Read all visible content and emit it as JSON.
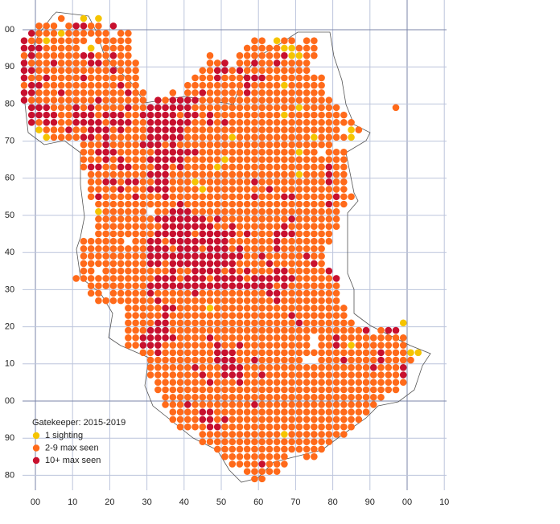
{
  "map": {
    "x_labels": [
      "00",
      "10",
      "20",
      "30",
      "40",
      "50",
      "60",
      "70",
      "80",
      "90",
      "00",
      "10"
    ],
    "y_labels": [
      "00",
      "90",
      "80",
      "70",
      "60",
      "50",
      "40",
      "30",
      "20",
      "10",
      "00",
      "90",
      "80"
    ],
    "legend": {
      "title": "Gatekeeper:  2015-2019",
      "items": [
        {
          "symbol": "a",
          "label": "1 sighting",
          "color": "#f5c400"
        },
        {
          "symbol": "b",
          "label": "2-9 max seen",
          "color": "#ff6a1a"
        },
        {
          "symbol": "c",
          "label": "10+ max seen",
          "color": "#c8102e"
        }
      ]
    },
    "rows": [
      ".....b..a.a",
      "..bbb.bccbb.c",
      ".cbbbabbbbbb.bb",
      "cbbabbbbb.bbbbb................bb.abb.bb",
      "cccbbbbb.a.bbbb...............bbbbbaabbb",
      "bcbbbbbbccbbcbb..........b...bbbbbbcaabb",
      "cbbbcbbbbccbbbbb.........bbc.bbcbbcbbbb",
      "ccbbbbbbbbbbcbbb........bbccbcbbbbbbbbb",
      "cbbcbbbbcbbbbbbb.......bbbcbbbcccbbbbbbbb",
      "bccbbbbbbbbbbcbb......bbbbbbbbcbbbbabbbbb",
      "ccbbbcbbbbbbbbcbb...b.bbcbbbbbcbbbbbbbbbb",
      "cbbbbbbbbbcbbbbbb.cbccccbbbbbbbbbbbbbbbbbb",
      ".cccbbbcbcbbbbcbbccccccbbbbbbbbbbbbbbabbbbb.......b",
      ".ccccbbcccbcccbbcccccbccbcbbbbbbbbbabbbbbbbb",
      ".cbccbbccccbcccbbccccccbbcbcbbbbbbbbbbbbbbbbb",
      "..abbbcbbcccbcbbbcccccbbbbbbbbbbbbbbbbbbbbb.ab",
      "...abbbbccbcbbbbbcccccbbbbbbabbbbbbbbbbabbbba",
      "........bbbcbbbbcccbcbbbbbbbbbbbbbbbbbbbbb",
      "........bbcccbbbbbccccccbbbbbbbbbbbbbabb.bbb",
      "........bbbcbcbbbcccccbbbbbabbbbbbbbbbbbbbbb",
      "........bccbbccbbbccbcbbbbabbbbbbbbbbbbbbcbb",
      ".........bbbbbbbbcccbbbbbbbbbbbbbbbbbabbbcbb",
      ".........bbccbccbbccbbbabbbbbbbcbbbbbbbbbcbb",
      ".........bbbbcbbbcccbbbbabbbbbbbbcbbbbbbbbbb",
      ".........bcbbbbcbbbcbbbbbbbbbbbcbbbccbbbbbcbb",
      "..........bbbbbbbbbbbcbbbbbbbbbbbbbbbbbbbcbb",
      "..........abbbbbb.bbcccbbbbbbbbbbbbbbbbbbbb",
      "..........bbbbbbbbcccccccbcbbbbbbbbbcbbbbbb",
      "..........bbbbbbbbbcccccccbbcbbbbbbcbbbbbbb",
      "..........bbbbbbbbcccccbcccccbcbbbcccbbbbb",
      "........bbbbbb.bbccbccccccccbbbbbbcbbbbbbb",
      "........bbbbbbbbbcccbcccbcccbcbbbbcbbbbbb",
      "........bbbbbbbbbcccccccccccccbbcbbbbbcbb",
      "........bbbbbbbbbccbcccccccccbbbbcbbbbbcb",
      "........bb.bbbbbbbbbcbbccccbcbcbbbccbbbbbc",
      ".......bbbbbbbbbbbcccbcccbccccbccccccbbbbbc",
      ".........bbbbbbbbcccccccccccccccccbcbbbbbbb",
      ".........bb.bbbbbcbbbbbcbbbbbbbbbccbbbbbbbb",
      "..........bbbbbbbbcbbbbbbbbbbbbbbbcbbbbbbbb",
      "..............bbbbbccbbbbabbbbbbbbbbbbbbbbbb",
      "..............bbbbbcbbbbbbbbbbbbbbbbcbbbbbbb",
      "..............bbbbccbbbbbbbbbbbbbbbbbcbbbbbbb......a",
      "..............bbbcccbbbbbbbbbbbbbbbbbbbbbbbbbbc.bcc",
      "..............bbcccccbbbbcbbbbbbbbbbbbb.bbcbbbbbbbbb",
      "..............bbcccbbbbbbbcbbcbbbbbbbbb.bbcbabbbbbbb",
      "................bbcbbbbbbbcccbbbbbbbbbbbbbbbbbbbcbbbaa",
      ".................bbbbbbbbbcccbbcbbbbbb..bbbcbbbbcbbbb",
      ".................bbbbbbcbbbcccbbbbbbbbbbbbbbbbbcbbbc",
      ".................bbbbbbbcbbcccbbcbbbbbbbbbbbbbbbbbbc",
      "..................bbbbbbbcbbbcbbbbbbbbbbbbbbbbbbbbbb",
      "..................bbbbbbbbbbbbbbbbbbbbbbbbbbbbbbbbb",
      "...................bbbbbbbbbbbbbbbbbbbbbbbbbbbbbb",
      "...................bbbcbbbbbbbbcbbbbbbbbbbbbbbbb",
      "....................bbbbccbbbbbbbbbbbbbbbbbbbbb",
      "....................bbbbccbcbbbbbbbbbbbbbbbbbb",
      ".....................bbbbccbbbbbbbbbbbbbbbbbb",
      "........................bbbbbbbbbbbabbbbbbbb",
      "........................bbbbbbbbbbbbbbbbbb",
      "..........................bbbbbbbbbbbbbbb",
      "...........................bbbbbbbbb..bb",
      "............................bbbbcbbb",
      "..............................bbbbb",
      "...............................bb"
    ]
  }
}
